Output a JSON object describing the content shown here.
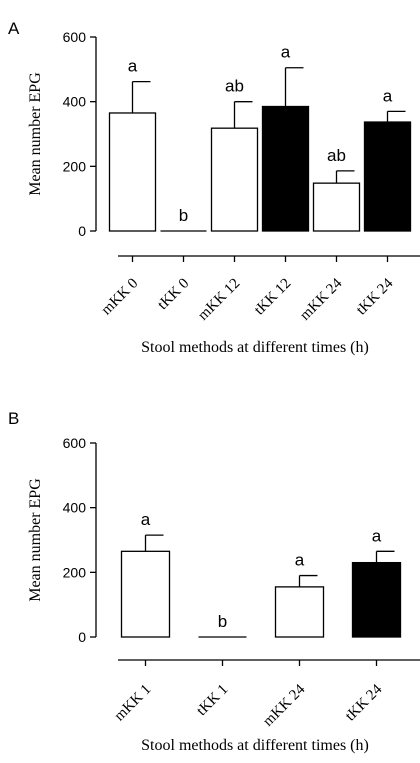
{
  "chart_data": [
    {
      "type": "bar",
      "panel": "A",
      "categories": [
        "mKK 0",
        "tKK 0",
        "mKK 12",
        "tKK 12",
        "mKK 24",
        "tKK 24"
      ],
      "values": [
        365,
        0,
        318,
        385,
        148,
        337
      ],
      "errors": [
        97,
        0,
        82,
        120,
        38,
        33
      ],
      "significance": [
        "a",
        "b",
        "ab",
        "a",
        "ab",
        "a"
      ],
      "bar_fills": [
        "#ffffff",
        "#ffffff",
        "#ffffff",
        "#000000",
        "#ffffff",
        "#000000"
      ],
      "yticks": [
        0,
        200,
        400,
        600
      ],
      "ylim": [
        0,
        600
      ],
      "xlabel": "Stool methods at different times (h)",
      "ylabel": "Mean number EPG"
    },
    {
      "type": "bar",
      "panel": "B",
      "categories": [
        "mKK 1",
        "tKK 1",
        "mKK 24",
        "tKK 24"
      ],
      "values": [
        265,
        0,
        155,
        230
      ],
      "errors": [
        50,
        0,
        35,
        35
      ],
      "significance": [
        "a",
        "b",
        "a",
        "a"
      ],
      "bar_fills": [
        "#ffffff",
        "#ffffff",
        "#ffffff",
        "#000000"
      ],
      "yticks": [
        0,
        200,
        400,
        600
      ],
      "ylim": [
        0,
        600
      ],
      "xlabel": "Stool methods at different times (h)",
      "ylabel": "Mean number EPG"
    }
  ]
}
